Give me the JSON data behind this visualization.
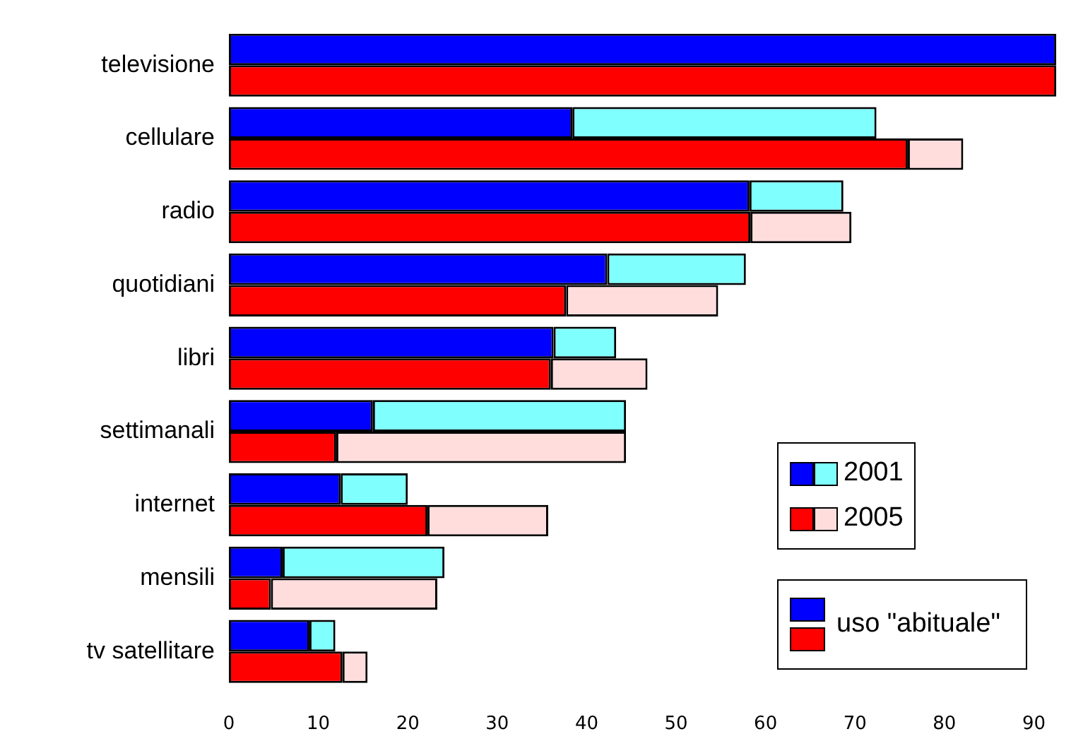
{
  "chart_data": {
    "type": "bar",
    "orientation": "horizontal",
    "categories": [
      "televisione",
      "cellulare",
      "radio",
      "quotidiani",
      "libri",
      "settimanali",
      "internet",
      "mensili",
      "tv satellitare"
    ],
    "series": [
      {
        "name": "2001",
        "color": "#0000ff",
        "base": [
          0,
          0,
          0,
          0,
          0,
          0,
          0,
          0,
          0
        ],
        "values": [
          92.5,
          38.4,
          58.2,
          42.3,
          36.3,
          16.1,
          12.5,
          6.0,
          9.0
        ]
      },
      {
        "color": "#80ffff",
        "base": [
          null,
          38.4,
          58.2,
          42.3,
          36.3,
          16.1,
          12.5,
          6.0,
          9.0
        ],
        "values": [
          null,
          34.0,
          10.5,
          15.5,
          7.0,
          28.3,
          7.5,
          18.1,
          2.9
        ]
      },
      {
        "name": "2005",
        "color": "#ff0000",
        "base": [
          0,
          0,
          0,
          0,
          0,
          0,
          0,
          0,
          0
        ],
        "values": [
          92.5,
          75.9,
          58.3,
          37.7,
          36.0,
          12.0,
          22.2,
          4.7,
          12.7
        ]
      },
      {
        "color": "#ffdddd",
        "base": [
          null,
          75.9,
          58.3,
          37.7,
          36.0,
          12.0,
          22.2,
          4.7,
          12.7
        ],
        "values": [
          null,
          6.2,
          11.3,
          17.0,
          10.8,
          32.4,
          13.5,
          18.6,
          2.8
        ]
      }
    ],
    "legend_title": "uso \"abituale\"",
    "xlim": [
      0,
      92.5
    ],
    "xticks": [
      0,
      10,
      20,
      30,
      40,
      50,
      60,
      70,
      80,
      90
    ],
    "grid": false,
    "legend": "bottom right"
  }
}
